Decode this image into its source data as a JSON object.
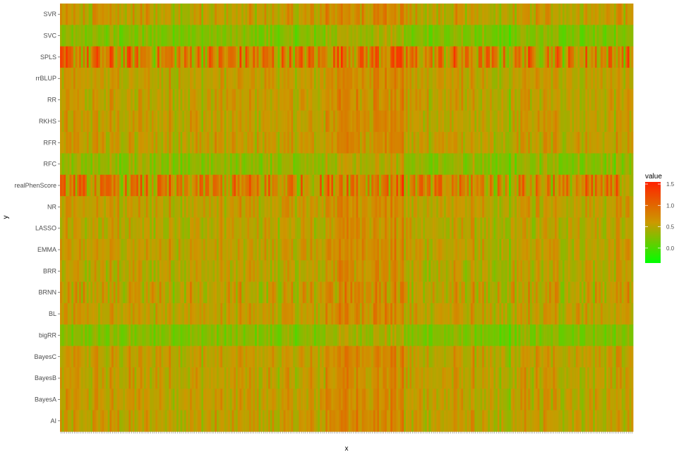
{
  "chart_data": {
    "type": "heatmap",
    "title": "",
    "xlabel": "x",
    "ylabel": "y",
    "y_categories": [
      "SVR",
      "SVC",
      "SPLS",
      "rrBLUP",
      "RR",
      "RKHS",
      "RFR",
      "RFC",
      "realPhenScore",
      "NR",
      "LASSO",
      "EMMA",
      "BRR",
      "BRNN",
      "BL",
      "bigRR",
      "BayesC",
      "BayesB",
      "BayesA",
      "AI"
    ],
    "x_count": 300,
    "value_range": [
      -0.35,
      1.55
    ],
    "row_means": [
      0.55,
      0.25,
      0.75,
      0.55,
      0.55,
      0.55,
      0.55,
      0.3,
      0.7,
      0.55,
      0.5,
      0.55,
      0.5,
      0.55,
      0.55,
      0.25,
      0.55,
      0.55,
      0.55,
      0.55
    ],
    "row_variability": [
      0.35,
      0.18,
      1.1,
      0.28,
      0.28,
      0.28,
      0.3,
      0.25,
      1.0,
      0.28,
      0.3,
      0.28,
      0.3,
      0.5,
      0.28,
      0.12,
      0.28,
      0.28,
      0.28,
      0.28
    ],
    "legend": {
      "title": "value",
      "ticks": [
        1.5,
        1.0,
        0.5,
        0.0
      ],
      "tick_labels": [
        "1.5",
        "1.0",
        "0.5",
        "0.0"
      ],
      "position": "right"
    },
    "colors": {
      "low": "#00ff00",
      "mid": "#cc9900",
      "high": "#ff2200"
    },
    "grid": false
  }
}
